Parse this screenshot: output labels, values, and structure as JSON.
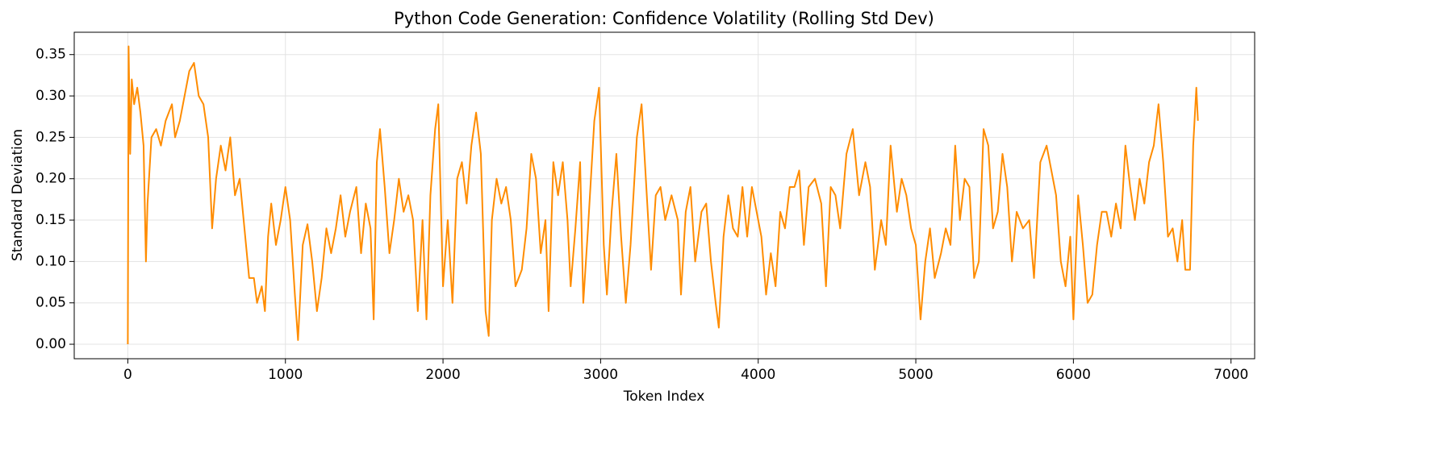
{
  "chart_data": {
    "type": "line",
    "title": "Python Code Generation: Confidence Volatility (Rolling Std Dev)",
    "x_label": "Token Index",
    "y_label": "Standard Deviation",
    "xlim": [
      -340,
      7150
    ],
    "ylim": [
      -0.0175,
      0.377
    ],
    "xticks": [
      0,
      1000,
      2000,
      3000,
      4000,
      5000,
      6000,
      7000
    ],
    "yticks": [
      {
        "value": 0,
        "label": "0.00"
      },
      0.05,
      {
        "value": 0.1,
        "label": "0.10"
      },
      0.15,
      {
        "value": 0.2,
        "label": "0.20"
      },
      0.25,
      {
        "value": 0.3,
        "label": "0.30"
      },
      0.35
    ],
    "grid": true,
    "x": [
      0,
      5,
      15,
      25,
      40,
      60,
      80,
      100,
      115,
      125,
      150,
      180,
      210,
      240,
      280,
      300,
      330,
      360,
      390,
      420,
      450,
      480,
      510,
      535,
      560,
      590,
      620,
      650,
      680,
      710,
      740,
      770,
      800,
      820,
      850,
      870,
      890,
      910,
      940,
      970,
      1000,
      1030,
      1060,
      1080,
      1110,
      1140,
      1170,
      1200,
      1230,
      1260,
      1290,
      1320,
      1350,
      1380,
      1410,
      1450,
      1480,
      1510,
      1540,
      1560,
      1580,
      1600,
      1630,
      1660,
      1690,
      1720,
      1750,
      1780,
      1810,
      1840,
      1870,
      1895,
      1920,
      1950,
      1970,
      2000,
      2030,
      2060,
      2090,
      2120,
      2150,
      2180,
      2210,
      2240,
      2270,
      2290,
      2310,
      2340,
      2370,
      2400,
      2430,
      2460,
      2500,
      2530,
      2560,
      2590,
      2620,
      2650,
      2670,
      2700,
      2730,
      2760,
      2790,
      2810,
      2840,
      2870,
      2890,
      2920,
      2960,
      2990,
      3020,
      3040,
      3070,
      3100,
      3130,
      3160,
      3190,
      3230,
      3260,
      3290,
      3320,
      3350,
      3380,
      3410,
      3450,
      3490,
      3510,
      3540,
      3570,
      3600,
      3640,
      3670,
      3700,
      3730,
      3750,
      3780,
      3810,
      3840,
      3870,
      3900,
      3930,
      3960,
      3990,
      4020,
      4050,
      4080,
      4110,
      4140,
      4170,
      4200,
      4230,
      4260,
      4290,
      4320,
      4360,
      4400,
      4430,
      4460,
      4490,
      4520,
      4560,
      4600,
      4640,
      4680,
      4710,
      4740,
      4780,
      4810,
      4840,
      4880,
      4910,
      4940,
      4970,
      5000,
      5030,
      5060,
      5090,
      5120,
      5160,
      5190,
      5220,
      5250,
      5280,
      5310,
      5340,
      5370,
      5400,
      5430,
      5460,
      5490,
      5520,
      5550,
      5580,
      5610,
      5640,
      5680,
      5720,
      5750,
      5790,
      5830,
      5860,
      5890,
      5920,
      5950,
      5980,
      6000,
      6030,
      6060,
      6090,
      6120,
      6150,
      6180,
      6210,
      6240,
      6270,
      6300,
      6330,
      6360,
      6390,
      6420,
      6450,
      6480,
      6510,
      6540,
      6570,
      6600,
      6630,
      6660,
      6690,
      6710,
      6740,
      6760,
      6780,
      6790
    ],
    "series": [
      {
        "name": "Rolling Std Dev",
        "color": "#ff8c00",
        "values": [
          0.0,
          0.36,
          0.23,
          0.32,
          0.29,
          0.31,
          0.28,
          0.24,
          0.1,
          0.17,
          0.25,
          0.26,
          0.24,
          0.27,
          0.29,
          0.25,
          0.27,
          0.3,
          0.33,
          0.34,
          0.3,
          0.29,
          0.25,
          0.14,
          0.2,
          0.24,
          0.21,
          0.25,
          0.18,
          0.2,
          0.14,
          0.08,
          0.08,
          0.05,
          0.07,
          0.04,
          0.13,
          0.17,
          0.12,
          0.15,
          0.19,
          0.15,
          0.06,
          0.005,
          0.12,
          0.145,
          0.1,
          0.04,
          0.08,
          0.14,
          0.11,
          0.14,
          0.18,
          0.13,
          0.16,
          0.19,
          0.11,
          0.17,
          0.14,
          0.03,
          0.22,
          0.26,
          0.19,
          0.11,
          0.15,
          0.2,
          0.16,
          0.18,
          0.15,
          0.04,
          0.15,
          0.03,
          0.18,
          0.26,
          0.29,
          0.07,
          0.15,
          0.05,
          0.2,
          0.22,
          0.17,
          0.24,
          0.28,
          0.23,
          0.04,
          0.01,
          0.15,
          0.2,
          0.17,
          0.19,
          0.15,
          0.07,
          0.09,
          0.14,
          0.23,
          0.2,
          0.11,
          0.15,
          0.04,
          0.22,
          0.18,
          0.22,
          0.15,
          0.07,
          0.14,
          0.22,
          0.05,
          0.14,
          0.27,
          0.31,
          0.12,
          0.06,
          0.16,
          0.23,
          0.13,
          0.05,
          0.12,
          0.25,
          0.29,
          0.19,
          0.09,
          0.18,
          0.19,
          0.15,
          0.18,
          0.15,
          0.06,
          0.16,
          0.19,
          0.1,
          0.16,
          0.17,
          0.1,
          0.05,
          0.02,
          0.13,
          0.18,
          0.14,
          0.13,
          0.19,
          0.13,
          0.19,
          0.16,
          0.13,
          0.06,
          0.11,
          0.07,
          0.16,
          0.14,
          0.19,
          0.19,
          0.21,
          0.12,
          0.19,
          0.2,
          0.17,
          0.07,
          0.19,
          0.18,
          0.14,
          0.23,
          0.26,
          0.18,
          0.22,
          0.19,
          0.09,
          0.15,
          0.12,
          0.24,
          0.16,
          0.2,
          0.18,
          0.14,
          0.12,
          0.03,
          0.1,
          0.14,
          0.08,
          0.11,
          0.14,
          0.12,
          0.24,
          0.15,
          0.2,
          0.19,
          0.08,
          0.1,
          0.26,
          0.24,
          0.14,
          0.16,
          0.23,
          0.19,
          0.1,
          0.16,
          0.14,
          0.15,
          0.08,
          0.22,
          0.24,
          0.21,
          0.18,
          0.1,
          0.07,
          0.13,
          0.03,
          0.18,
          0.12,
          0.05,
          0.06,
          0.12,
          0.16,
          0.16,
          0.13,
          0.17,
          0.14,
          0.24,
          0.19,
          0.15,
          0.2,
          0.17,
          0.22,
          0.24,
          0.29,
          0.22,
          0.13,
          0.14,
          0.1,
          0.15,
          0.09,
          0.09,
          0.24,
          0.31,
          0.27
        ]
      }
    ]
  }
}
